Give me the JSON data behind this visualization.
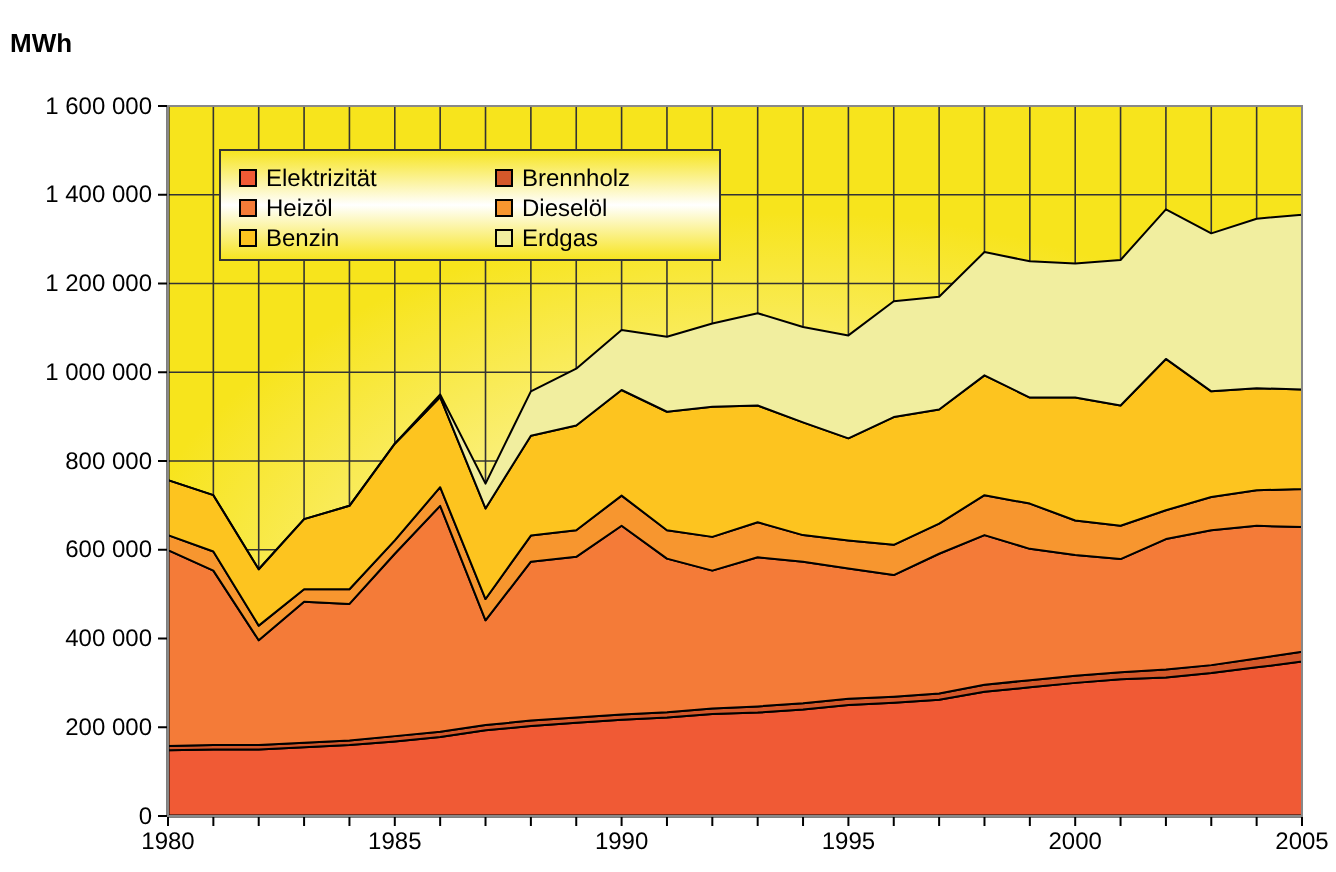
{
  "chart_data": {
    "type": "area",
    "stacked": true,
    "ylabel": "MWh",
    "x": [
      1980,
      1981,
      1982,
      1983,
      1984,
      1985,
      1986,
      1987,
      1988,
      1989,
      1990,
      1991,
      1992,
      1993,
      1994,
      1995,
      1996,
      1997,
      1998,
      1999,
      2000,
      2001,
      2002,
      2003,
      2004,
      2005
    ],
    "xlim": [
      1980,
      2005
    ],
    "xticks": [
      1980,
      {
        "value": 1981,
        "label": null
      },
      {
        "value": 1982,
        "label": null
      },
      {
        "value": 1983,
        "label": null
      },
      {
        "value": 1984,
        "label": null
      },
      1985,
      {
        "value": 1986,
        "label": null
      },
      {
        "value": 1987,
        "label": null
      },
      {
        "value": 1988,
        "label": null
      },
      {
        "value": 1989,
        "label": null
      },
      1990,
      {
        "value": 1991,
        "label": null
      },
      {
        "value": 1992,
        "label": null
      },
      {
        "value": 1993,
        "label": null
      },
      {
        "value": 1994,
        "label": null
      },
      1995,
      {
        "value": 1996,
        "label": null
      },
      {
        "value": 1997,
        "label": null
      },
      {
        "value": 1998,
        "label": null
      },
      {
        "value": 1999,
        "label": null
      },
      2000,
      {
        "value": 2001,
        "label": null
      },
      {
        "value": 2002,
        "label": null
      },
      {
        "value": 2003,
        "label": null
      },
      {
        "value": 2004,
        "label": null
      },
      2005
    ],
    "ylim": [
      0,
      1600000
    ],
    "yticks": [
      0,
      {
        "value": 200000,
        "label": "200 000"
      },
      {
        "value": 400000,
        "label": "400 000"
      },
      {
        "value": 600000,
        "label": "600 000"
      },
      {
        "value": 800000,
        "label": "800 000"
      },
      {
        "value": 1000000,
        "label": "1 000 000"
      },
      {
        "value": 1200000,
        "label": "1 200 000"
      },
      {
        "value": 1400000,
        "label": "1 400 000"
      },
      {
        "value": 1600000,
        "label": "1 600 000"
      }
    ],
    "grid": true,
    "legend": "top left",
    "series": [
      {
        "name": "Elektrizität",
        "color": "#f05a35",
        "values": [
          148000,
          150000,
          150000,
          155000,
          160000,
          168000,
          178000,
          193000,
          203000,
          210000,
          217000,
          222000,
          230000,
          233000,
          240000,
          250000,
          255000,
          262000,
          280000,
          290000,
          300000,
          308000,
          312000,
          322000,
          335000,
          348000
        ]
      },
      {
        "name": "Brennholz",
        "color": "#d4582a",
        "values": [
          10000,
          10000,
          10000,
          10000,
          10000,
          12000,
          12000,
          12000,
          12000,
          12000,
          12000,
          12000,
          12000,
          14000,
          14000,
          14000,
          14000,
          14000,
          16000,
          16000,
          16000,
          16000,
          18000,
          18000,
          20000,
          22000
        ]
      },
      {
        "name": "Heizöl",
        "color": "#f47b38",
        "values": [
          441000,
          393000,
          236000,
          318000,
          308000,
          411000,
          509000,
          236000,
          358000,
          362000,
          425000,
          346000,
          311000,
          336000,
          319000,
          294000,
          274000,
          315000,
          337000,
          296000,
          272000,
          255000,
          294000,
          304000,
          299000,
          281000
        ]
      },
      {
        "name": "Dieselöl",
        "color": "#f7962f",
        "values": [
          34000,
          43000,
          33000,
          28000,
          33000,
          30000,
          42000,
          48000,
          59000,
          60000,
          68000,
          64000,
          76000,
          79000,
          60000,
          63000,
          68000,
          68000,
          90000,
          102000,
          78000,
          75000,
          65000,
          75000,
          80000,
          86000
        ]
      },
      {
        "name": "Benzin",
        "color": "#fdc41f",
        "values": [
          124000,
          127000,
          127000,
          158000,
          188000,
          218000,
          203000,
          204000,
          225000,
          236000,
          238000,
          267000,
          293000,
          263000,
          254000,
          230000,
          288000,
          257000,
          270000,
          239000,
          277000,
          271000,
          341000,
          238000,
          230000,
          224000
        ]
      },
      {
        "name": "Erdgas",
        "color": "#f1ee9f",
        "values": [
          0,
          0,
          0,
          0,
          0,
          0,
          6000,
          56000,
          100000,
          128000,
          135000,
          169000,
          188000,
          208000,
          215000,
          232000,
          261000,
          254000,
          278000,
          307000,
          302000,
          328000,
          337000,
          356000,
          382000,
          394000
        ]
      }
    ]
  }
}
